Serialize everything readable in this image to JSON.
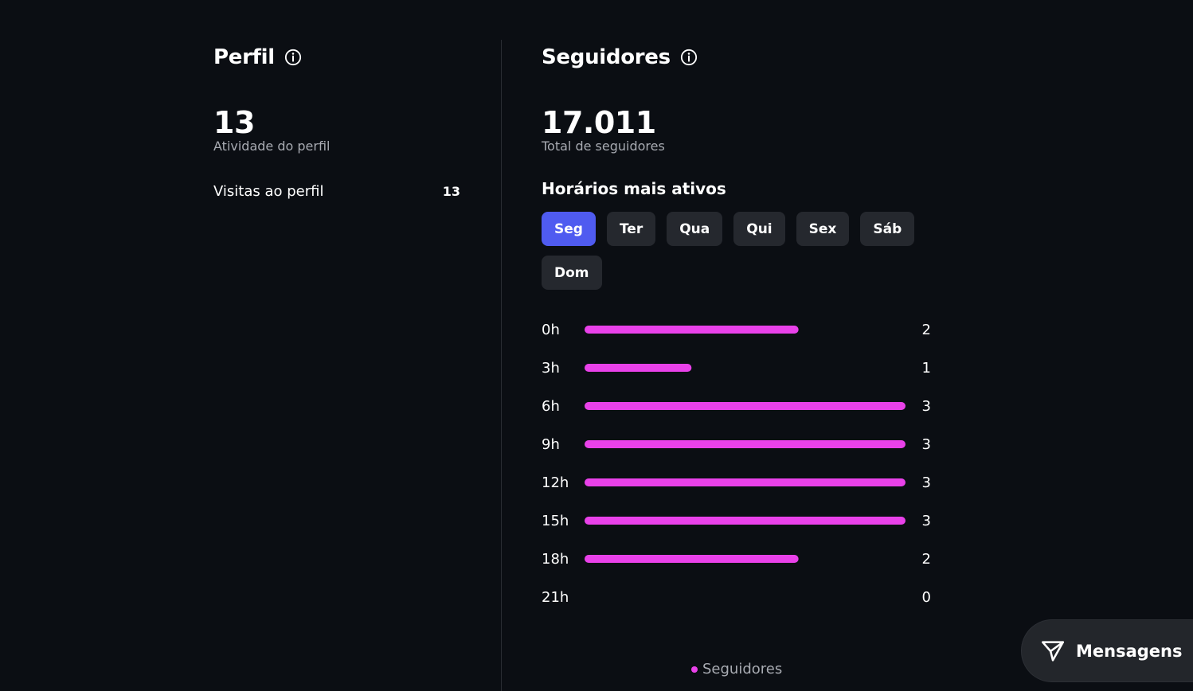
{
  "perfil": {
    "title": "Perfil",
    "total": "13",
    "total_label": "Atividade do perfil",
    "stats": [
      {
        "label": "Visitas ao perfil",
        "value": "13"
      }
    ]
  },
  "seguidores": {
    "title": "Seguidores",
    "total": "17.011",
    "total_label": "Total de seguidores",
    "active_hours_title": "Horários mais ativos",
    "days": [
      "Seg",
      "Ter",
      "Qua",
      "Qui",
      "Sex",
      "Sáb",
      "Dom"
    ],
    "selected_day": "Seg"
  },
  "chart_data": {
    "type": "bar",
    "orientation": "horizontal",
    "categories": [
      "0h",
      "3h",
      "6h",
      "9h",
      "12h",
      "15h",
      "18h",
      "21h"
    ],
    "series": [
      {
        "name": "Seguidores",
        "values": [
          2,
          1,
          3,
          3,
          3,
          3,
          2,
          0
        ]
      }
    ],
    "xlim": [
      0,
      3
    ],
    "grid": false,
    "legend": "bottom-center",
    "bar_color": "#e941e9"
  },
  "colors": {
    "background": "#0b0e13",
    "accent": "#4f5bf0",
    "bar": "#e941e9",
    "chip": "#25282e",
    "muted_text": "#a8abb2"
  },
  "icons": {
    "info": "info-icon",
    "send": "send-icon"
  },
  "messages": {
    "label": "Mensagens"
  }
}
